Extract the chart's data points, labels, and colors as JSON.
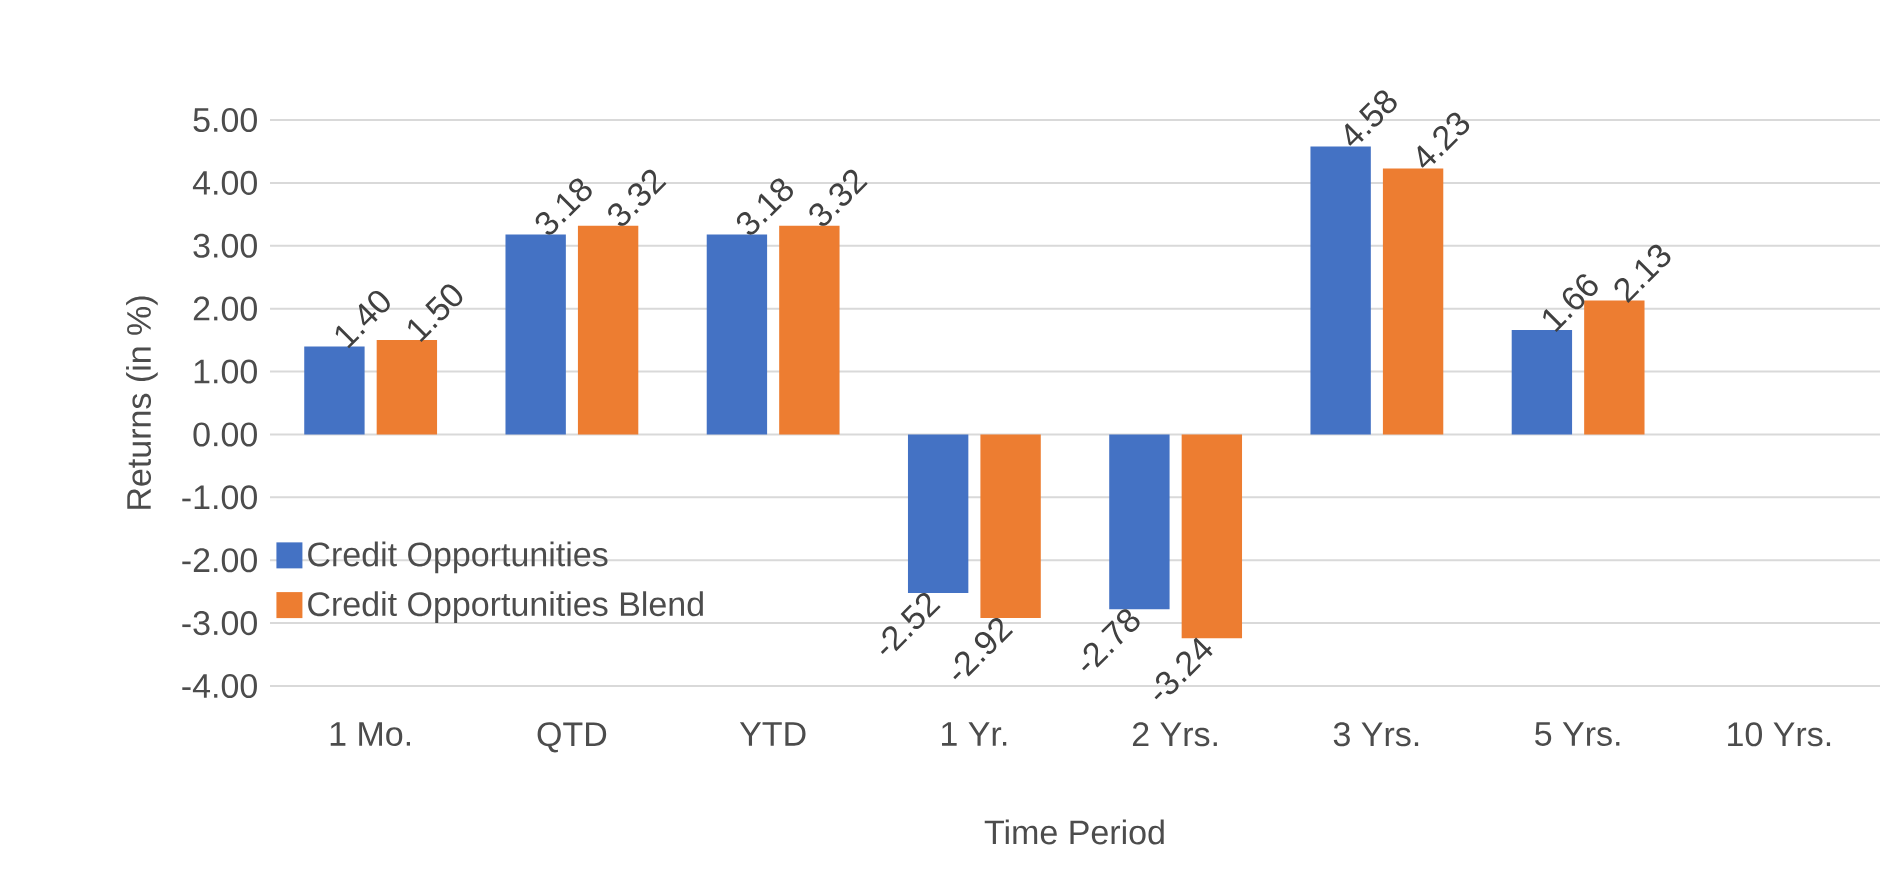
{
  "chart_data": {
    "type": "bar",
    "xlabel": "Time Period",
    "ylabel": "Returns (in %)",
    "categories": [
      "1 Mo.",
      "QTD",
      "YTD",
      "1 Yr.",
      "2 Yrs.",
      "3 Yrs.",
      "5 Yrs.",
      "10 Yrs."
    ],
    "series": [
      {
        "name": "Credit Opportunities",
        "color": "#4472c4",
        "values": [
          1.4,
          3.18,
          3.18,
          -2.52,
          -2.78,
          4.58,
          1.66,
          null
        ],
        "value_labels": [
          "1.40",
          "3.18",
          "3.18",
          "-2.52",
          "-2.78",
          "4.58",
          "1.66",
          null
        ]
      },
      {
        "name": "Credit Opportunities Blend",
        "color": "#ed7d31",
        "values": [
          1.5,
          3.32,
          3.32,
          -2.92,
          -3.24,
          4.23,
          2.13,
          null
        ],
        "value_labels": [
          "1.50",
          "3.32",
          "3.32",
          "-2.92",
          "-3.24",
          "4.23",
          "2.13",
          null
        ]
      }
    ],
    "ylim": [
      -4,
      5
    ],
    "yticks": [
      {
        "value": -4,
        "label": "-4.00"
      },
      {
        "value": -3,
        "label": "-3.00"
      },
      {
        "value": -2,
        "label": "-2.00"
      },
      {
        "value": -1,
        "label": "-1.00"
      },
      {
        "value": 0,
        "label": "0.00"
      },
      {
        "value": 1,
        "label": "1.00"
      },
      {
        "value": 2,
        "label": "2.00"
      },
      {
        "value": 3,
        "label": "3.00"
      },
      {
        "value": 4,
        "label": "4.00"
      },
      {
        "value": 5,
        "label": "5.00"
      }
    ],
    "grid": "y",
    "legend": "bottom left"
  }
}
